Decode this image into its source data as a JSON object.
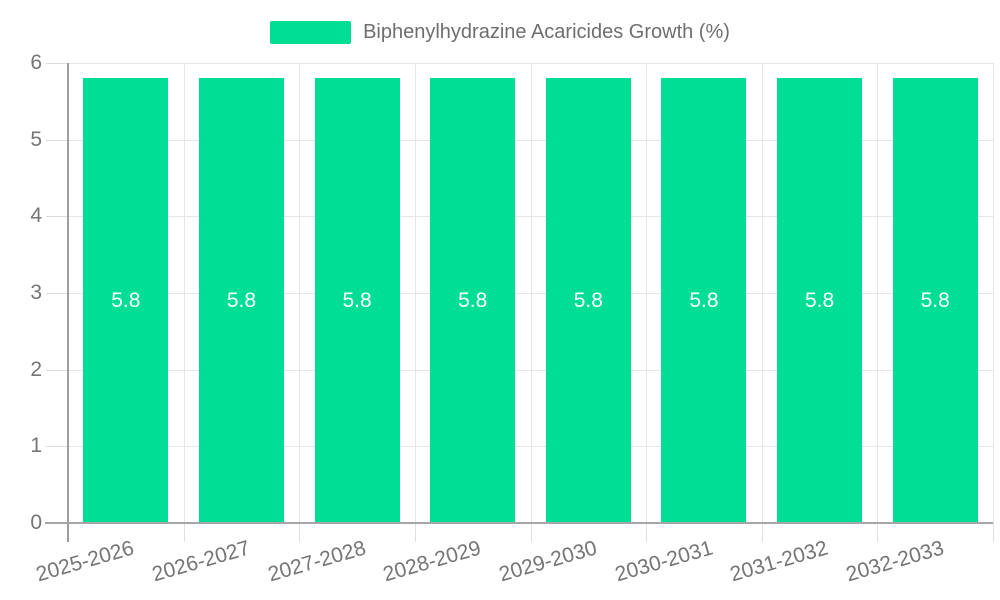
{
  "legend": {
    "label": "Biphenylhydrazine Acaricides Growth (%)",
    "swatch_color": "#00de96"
  },
  "chart_data": {
    "type": "bar",
    "title": "Biphenylhydrazine Acaricides Growth (%)",
    "categories": [
      "2025-2026",
      "2026-2027",
      "2027-2028",
      "2028-2029",
      "2029-2030",
      "2030-2031",
      "2031-2032",
      "2032-2033"
    ],
    "series": [
      {
        "name": "Biphenylhydrazine Acaricides Growth (%)",
        "values": [
          5.8,
          5.8,
          5.8,
          5.8,
          5.8,
          5.8,
          5.8,
          5.8
        ]
      }
    ],
    "value_labels": [
      "5.8",
      "5.8",
      "5.8",
      "5.8",
      "5.8",
      "5.8",
      "5.8",
      "5.8"
    ],
    "xlabel": "",
    "ylabel": "",
    "ylim": [
      0,
      6
    ],
    "yticks": [
      0,
      1,
      2,
      3,
      4,
      5,
      6
    ],
    "grid": true,
    "x_label_rotation_deg": -16,
    "legend_position": "top-center",
    "colors": {
      "bar": "#00de96",
      "bar_value_text": "#ffffff",
      "axis_line": "#9e9e9e",
      "gridline": "#e6e6e6",
      "tick_text": "#757575",
      "legend_text": "#6e6e6e",
      "background": "#ffffff"
    }
  }
}
